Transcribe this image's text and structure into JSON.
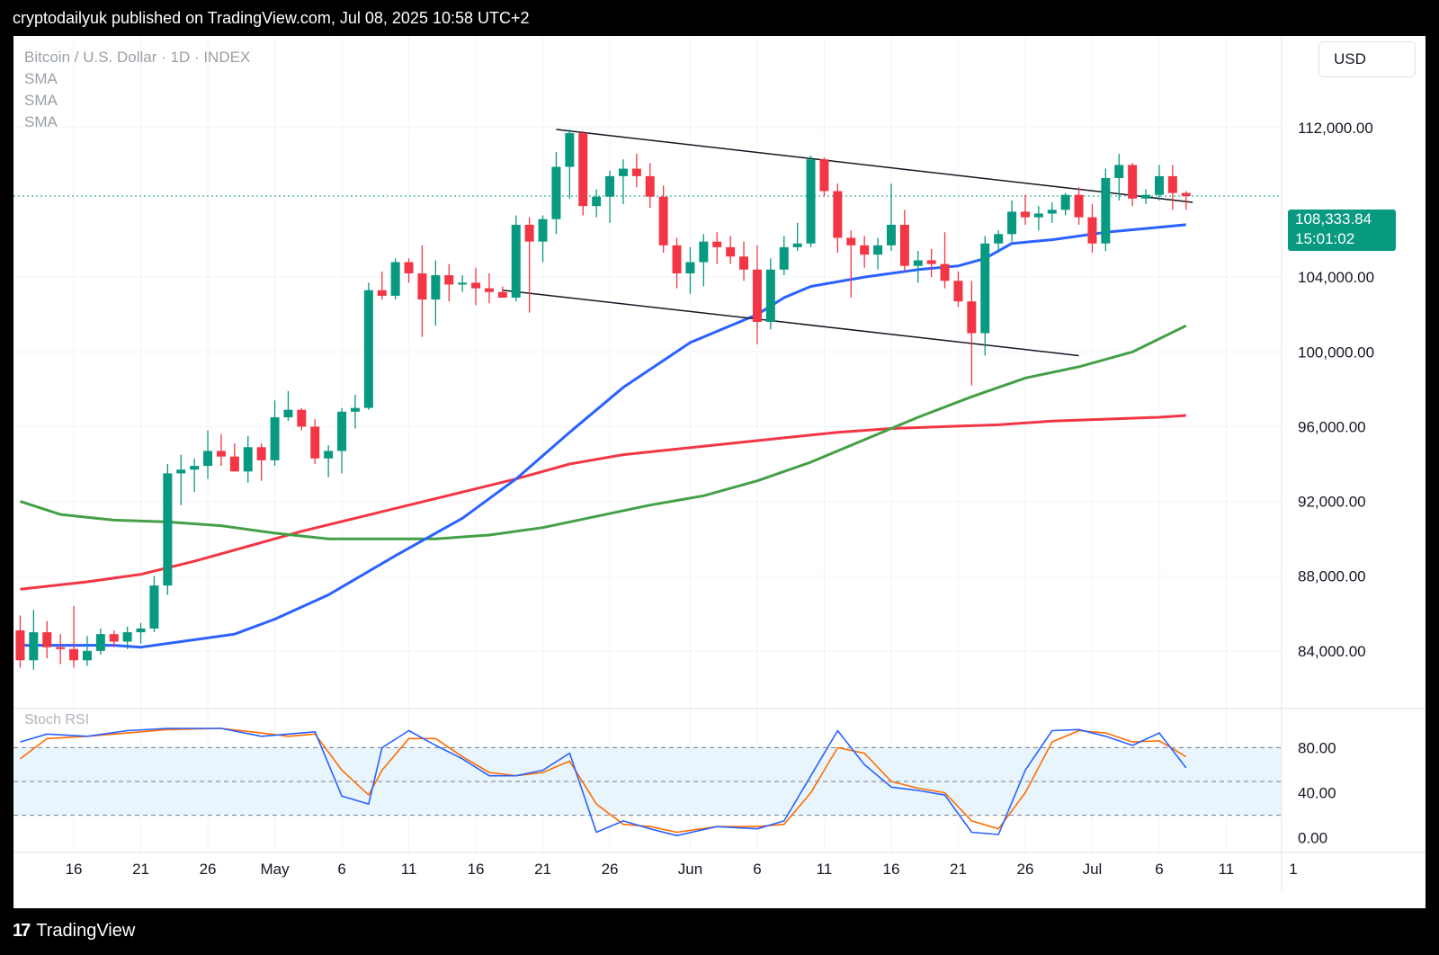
{
  "header": {
    "text": "cryptodailyuk published on TradingView.com, Jul 08, 2025 10:58 UTC+2"
  },
  "legend": {
    "symbol": "Bitcoin / U.S. Dollar · 1D · INDEX",
    "indicators": [
      "SMA",
      "SMA",
      "SMA"
    ]
  },
  "currency_button": "USD",
  "last_price": {
    "value": "108,333.84",
    "countdown": "15:01:02"
  },
  "footer": {
    "brand": "TradingView",
    "logo_glyph": "17"
  },
  "oscillator_label": "Stoch RSI",
  "colors": {
    "up": "#089981",
    "down": "#f23645",
    "sma_fast": "#2962ff",
    "sma_mid": "#43a047",
    "sma_slow": "#f23645",
    "stoch_k": "#2962ff",
    "stoch_d": "#ff6d00",
    "band": "#e3f2fd"
  },
  "chart_data": {
    "type": "candlestick",
    "title": "Bitcoin / U.S. Dollar · 1D · INDEX",
    "x_ticks": [
      "16",
      "21",
      "26",
      "May",
      "6",
      "11",
      "16",
      "21",
      "26",
      "Jun",
      "6",
      "11",
      "16",
      "21",
      "26",
      "Jul",
      "6",
      "11",
      "1"
    ],
    "x_tick_days": [
      -15,
      -10,
      -5,
      0,
      5,
      10,
      15,
      20,
      25,
      31,
      36,
      41,
      46,
      51,
      56,
      61,
      66,
      71,
      76
    ],
    "price_ticks": [
      "112,000.00",
      "104,000.00",
      "100,000.00",
      "96,000.00",
      "92,000.00",
      "88,000.00",
      "84,000.00"
    ],
    "price_tick_values": [
      112000,
      104000,
      100000,
      96000,
      92000,
      88000,
      84000
    ],
    "ylim": [
      81300,
      116900
    ],
    "candles": [
      {
        "d": -19,
        "o": 85100,
        "h": 85900,
        "l": 83100,
        "c": 83500
      },
      {
        "d": -18,
        "o": 83500,
        "h": 86200,
        "l": 83000,
        "c": 85000
      },
      {
        "d": -17,
        "o": 85000,
        "h": 85600,
        "l": 83600,
        "c": 84200
      },
      {
        "d": -16,
        "o": 84200,
        "h": 84900,
        "l": 83300,
        "c": 84100
      },
      {
        "d": -15,
        "o": 84100,
        "h": 86400,
        "l": 83100,
        "c": 83500
      },
      {
        "d": -14,
        "o": 83500,
        "h": 84800,
        "l": 83200,
        "c": 84000
      },
      {
        "d": -13,
        "o": 84000,
        "h": 85200,
        "l": 83800,
        "c": 84900
      },
      {
        "d": -12,
        "o": 84900,
        "h": 85100,
        "l": 84200,
        "c": 84500
      },
      {
        "d": -11,
        "o": 84500,
        "h": 85300,
        "l": 84100,
        "c": 85000
      },
      {
        "d": -10,
        "o": 85000,
        "h": 85500,
        "l": 84400,
        "c": 85200
      },
      {
        "d": -9,
        "o": 85200,
        "h": 88000,
        "l": 85000,
        "c": 87500
      },
      {
        "d": -8,
        "o": 87500,
        "h": 94000,
        "l": 87000,
        "c": 93500
      },
      {
        "d": -7,
        "o": 93500,
        "h": 94500,
        "l": 91800,
        "c": 93700
      },
      {
        "d": -6,
        "o": 93700,
        "h": 94300,
        "l": 92500,
        "c": 93900
      },
      {
        "d": -5,
        "o": 93900,
        "h": 95800,
        "l": 93200,
        "c": 94700
      },
      {
        "d": -4,
        "o": 94700,
        "h": 95600,
        "l": 93900,
        "c": 94400
      },
      {
        "d": -3,
        "o": 94400,
        "h": 95100,
        "l": 93700,
        "c": 93600
      },
      {
        "d": -2,
        "o": 93600,
        "h": 95500,
        "l": 93000,
        "c": 94900
      },
      {
        "d": -1,
        "o": 94900,
        "h": 95100,
        "l": 93100,
        "c": 94200
      },
      {
        "d": 0,
        "o": 94200,
        "h": 97400,
        "l": 93900,
        "c": 96500
      },
      {
        "d": 1,
        "o": 96500,
        "h": 97900,
        "l": 96300,
        "c": 96900
      },
      {
        "d": 2,
        "o": 96900,
        "h": 97000,
        "l": 95800,
        "c": 96000
      },
      {
        "d": 3,
        "o": 96000,
        "h": 96400,
        "l": 94000,
        "c": 94300
      },
      {
        "d": 4,
        "o": 94300,
        "h": 95000,
        "l": 93300,
        "c": 94700
      },
      {
        "d": 5,
        "o": 94700,
        "h": 97000,
        "l": 93500,
        "c": 96800
      },
      {
        "d": 6,
        "o": 96800,
        "h": 97700,
        "l": 95900,
        "c": 97000
      },
      {
        "d": 7,
        "o": 97000,
        "h": 103700,
        "l": 96900,
        "c": 103300
      },
      {
        "d": 8,
        "o": 103300,
        "h": 104300,
        "l": 102800,
        "c": 103000
      },
      {
        "d": 9,
        "o": 103000,
        "h": 105000,
        "l": 102800,
        "c": 104800
      },
      {
        "d": 10,
        "o": 104800,
        "h": 105000,
        "l": 103700,
        "c": 104200
      },
      {
        "d": 11,
        "o": 104200,
        "h": 105700,
        "l": 100800,
        "c": 102800
      },
      {
        "d": 12,
        "o": 102800,
        "h": 104900,
        "l": 101400,
        "c": 104100
      },
      {
        "d": 13,
        "o": 104100,
        "h": 104700,
        "l": 102700,
        "c": 103600
      },
      {
        "d": 14,
        "o": 103600,
        "h": 104100,
        "l": 103200,
        "c": 103700
      },
      {
        "d": 15,
        "o": 103700,
        "h": 104500,
        "l": 102500,
        "c": 103400
      },
      {
        "d": 16,
        "o": 103400,
        "h": 104200,
        "l": 102600,
        "c": 103200
      },
      {
        "d": 17,
        "o": 103200,
        "h": 103500,
        "l": 102900,
        "c": 102900
      },
      {
        "d": 18,
        "o": 102900,
        "h": 107300,
        "l": 102700,
        "c": 106800
      },
      {
        "d": 19,
        "o": 106800,
        "h": 107200,
        "l": 102100,
        "c": 105900
      },
      {
        "d": 20,
        "o": 105900,
        "h": 107300,
        "l": 104800,
        "c": 107100
      },
      {
        "d": 21,
        "o": 107100,
        "h": 110700,
        "l": 106300,
        "c": 109900
      },
      {
        "d": 22,
        "o": 109900,
        "h": 111900,
        "l": 108200,
        "c": 111700
      },
      {
        "d": 23,
        "o": 111700,
        "h": 111800,
        "l": 107300,
        "c": 107800
      },
      {
        "d": 24,
        "o": 107800,
        "h": 108700,
        "l": 107200,
        "c": 108300
      },
      {
        "d": 25,
        "o": 108300,
        "h": 109700,
        "l": 106900,
        "c": 109400
      },
      {
        "d": 26,
        "o": 109400,
        "h": 110300,
        "l": 107900,
        "c": 109800
      },
      {
        "d": 27,
        "o": 109800,
        "h": 110600,
        "l": 108800,
        "c": 109400
      },
      {
        "d": 28,
        "o": 109400,
        "h": 110100,
        "l": 107700,
        "c": 108300
      },
      {
        "d": 29,
        "o": 108300,
        "h": 108900,
        "l": 105300,
        "c": 105700
      },
      {
        "d": 30,
        "o": 105700,
        "h": 106100,
        "l": 103400,
        "c": 104200
      },
      {
        "d": 31,
        "o": 104200,
        "h": 105600,
        "l": 103100,
        "c": 104800
      },
      {
        "d": 32,
        "o": 104800,
        "h": 106300,
        "l": 103500,
        "c": 105900
      },
      {
        "d": 33,
        "o": 105900,
        "h": 106400,
        "l": 104700,
        "c": 105600
      },
      {
        "d": 34,
        "o": 105600,
        "h": 106200,
        "l": 104700,
        "c": 105100
      },
      {
        "d": 35,
        "o": 105100,
        "h": 105900,
        "l": 103800,
        "c": 104400
      },
      {
        "d": 36,
        "o": 104400,
        "h": 105700,
        "l": 100400,
        "c": 101600
      },
      {
        "d": 37,
        "o": 101600,
        "h": 105000,
        "l": 101200,
        "c": 104400
      },
      {
        "d": 38,
        "o": 104400,
        "h": 106200,
        "l": 104100,
        "c": 105600
      },
      {
        "d": 39,
        "o": 105600,
        "h": 106900,
        "l": 105400,
        "c": 105800
      },
      {
        "d": 40,
        "o": 105800,
        "h": 110500,
        "l": 105600,
        "c": 110300
      },
      {
        "d": 41,
        "o": 110300,
        "h": 110400,
        "l": 108300,
        "c": 108600
      },
      {
        "d": 42,
        "o": 108600,
        "h": 109000,
        "l": 105300,
        "c": 106100
      },
      {
        "d": 43,
        "o": 106100,
        "h": 106500,
        "l": 102900,
        "c": 105700
      },
      {
        "d": 44,
        "o": 105700,
        "h": 106200,
        "l": 104500,
        "c": 105200
      },
      {
        "d": 45,
        "o": 105200,
        "h": 106100,
        "l": 104400,
        "c": 105700
      },
      {
        "d": 46,
        "o": 105700,
        "h": 109000,
        "l": 105400,
        "c": 106800
      },
      {
        "d": 47,
        "o": 106800,
        "h": 107600,
        "l": 104300,
        "c": 104600
      },
      {
        "d": 48,
        "o": 104600,
        "h": 105400,
        "l": 103700,
        "c": 104900
      },
      {
        "d": 49,
        "o": 104900,
        "h": 105500,
        "l": 104000,
        "c": 104700
      },
      {
        "d": 50,
        "o": 104700,
        "h": 106400,
        "l": 103400,
        "c": 103800
      },
      {
        "d": 51,
        "o": 103800,
        "h": 104300,
        "l": 102400,
        "c": 102700
      },
      {
        "d": 52,
        "o": 102700,
        "h": 103800,
        "l": 98200,
        "c": 101000
      },
      {
        "d": 53,
        "o": 101000,
        "h": 106200,
        "l": 99800,
        "c": 105800
      },
      {
        "d": 54,
        "o": 105800,
        "h": 106500,
        "l": 105300,
        "c": 106300
      },
      {
        "d": 55,
        "o": 106300,
        "h": 108100,
        "l": 105900,
        "c": 107500
      },
      {
        "d": 56,
        "o": 107500,
        "h": 108400,
        "l": 106800,
        "c": 107200
      },
      {
        "d": 57,
        "o": 107200,
        "h": 107800,
        "l": 106500,
        "c": 107400
      },
      {
        "d": 58,
        "o": 107400,
        "h": 108000,
        "l": 106900,
        "c": 107600
      },
      {
        "d": 59,
        "o": 107600,
        "h": 108500,
        "l": 107300,
        "c": 108400
      },
      {
        "d": 60,
        "o": 108400,
        "h": 108800,
        "l": 106800,
        "c": 107200
      },
      {
        "d": 61,
        "o": 107200,
        "h": 107900,
        "l": 105300,
        "c": 105800
      },
      {
        "d": 62,
        "o": 105800,
        "h": 109800,
        "l": 105400,
        "c": 109300
      },
      {
        "d": 63,
        "o": 109300,
        "h": 110600,
        "l": 108100,
        "c": 110000
      },
      {
        "d": 64,
        "o": 110000,
        "h": 110100,
        "l": 107800,
        "c": 108200
      },
      {
        "d": 65,
        "o": 108200,
        "h": 108700,
        "l": 107900,
        "c": 108400
      },
      {
        "d": 66,
        "o": 108400,
        "h": 110000,
        "l": 108100,
        "c": 109400
      },
      {
        "d": 67,
        "o": 109400,
        "h": 110000,
        "l": 107600,
        "c": 108500
      },
      {
        "d": 68,
        "o": 108500,
        "h": 108600,
        "l": 107600,
        "c": 108334
      }
    ],
    "sma_fast": {
      "d": [
        -19,
        -16,
        -12,
        -10,
        -7,
        -3,
        0,
        4,
        9,
        14,
        18,
        22,
        26,
        31,
        36,
        38,
        40,
        44,
        48,
        51,
        53,
        55,
        58,
        62,
        68
      ],
      "v": [
        84300,
        84300,
        84300,
        84200,
        84500,
        84900,
        85700,
        87000,
        89100,
        91100,
        93200,
        95700,
        98100,
        100500,
        102000,
        102900,
        103500,
        104000,
        104400,
        104600,
        105000,
        105800,
        106000,
        106400,
        106800
      ]
    },
    "sma_mid": {
      "d": [
        -19,
        -16,
        -12,
        -8,
        -4,
        0,
        4,
        8,
        12,
        16,
        20,
        24,
        28,
        32,
        36,
        40,
        44,
        48,
        52,
        56,
        60,
        64,
        68
      ],
      "v": [
        92000,
        91300,
        91000,
        90900,
        90700,
        90300,
        90000,
        90000,
        90000,
        90200,
        90600,
        91200,
        91800,
        92300,
        93100,
        94100,
        95300,
        96500,
        97600,
        98600,
        99200,
        100000,
        101400
      ]
    },
    "sma_slow": {
      "d": [
        -19,
        -14,
        -10,
        -6,
        -2,
        2,
        6,
        10,
        14,
        18,
        22,
        26,
        30,
        34,
        38,
        42,
        46,
        50,
        54,
        58,
        62,
        66,
        68
      ],
      "v": [
        87300,
        87700,
        88100,
        88800,
        89600,
        90400,
        91100,
        91800,
        92500,
        93200,
        94000,
        94500,
        94800,
        95100,
        95400,
        95700,
        95900,
        96000,
        96100,
        96300,
        96400,
        96500,
        96600
      ]
    },
    "trend_lines": [
      {
        "from": {
          "d": 21,
          "v": 111900
        },
        "to": {
          "d": 68.5,
          "v": 108000
        }
      },
      {
        "from": {
          "d": 17,
          "v": 103300
        },
        "to": {
          "d": 60,
          "v": 99800
        }
      }
    ],
    "stoch_rsi": {
      "ylim": [
        -5,
        105
      ],
      "ticks": [
        "80.00",
        "40.00",
        "0.00"
      ],
      "tick_values": [
        80,
        40,
        0
      ],
      "band": [
        20,
        80
      ],
      "midline": 50,
      "k": {
        "d": [
          -19,
          -17,
          -14,
          -11,
          -8,
          -4,
          -1,
          1,
          3,
          5,
          7,
          8,
          10,
          12,
          14,
          16,
          18,
          20,
          22,
          24,
          26,
          28,
          30,
          33,
          36,
          38,
          40,
          42,
          44,
          46,
          48,
          50,
          52,
          54,
          56,
          58,
          60,
          62,
          64,
          66,
          68
        ],
        "v": [
          85,
          92,
          90,
          95,
          97,
          97,
          90,
          92,
          94,
          37,
          30,
          80,
          95,
          82,
          70,
          55,
          55,
          60,
          75,
          5,
          15,
          8,
          2,
          10,
          8,
          15,
          55,
          95,
          65,
          45,
          42,
          38,
          5,
          3,
          60,
          95,
          96,
          90,
          82,
          93,
          62
        ]
      },
      "d": {
        "d": [
          -19,
          -17,
          -14,
          -11,
          -8,
          -4,
          -1,
          1,
          3,
          5,
          7,
          8,
          10,
          12,
          14,
          16,
          18,
          20,
          22,
          24,
          26,
          28,
          30,
          33,
          36,
          38,
          40,
          42,
          44,
          46,
          48,
          50,
          52,
          54,
          56,
          58,
          60,
          62,
          64,
          66,
          68
        ],
        "v": [
          70,
          88,
          90,
          93,
          96,
          97,
          93,
          90,
          92,
          60,
          38,
          60,
          88,
          88,
          72,
          58,
          55,
          58,
          68,
          30,
          12,
          10,
          5,
          10,
          10,
          12,
          40,
          80,
          75,
          50,
          44,
          40,
          15,
          8,
          40,
          85,
          95,
          93,
          85,
          86,
          72
        ]
      }
    }
  }
}
